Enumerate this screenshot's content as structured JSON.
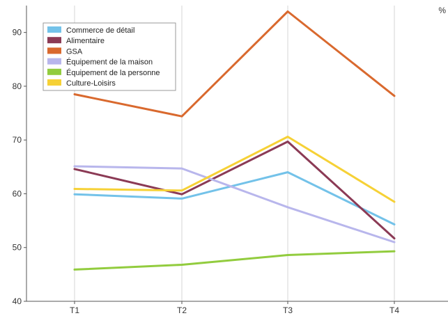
{
  "chart_data": {
    "type": "line",
    "title": "",
    "xlabel": "",
    "ylabel": "",
    "unit": "%",
    "categories": [
      "T1",
      "T2",
      "T3",
      "T4"
    ],
    "ylim": [
      40,
      95
    ],
    "yticks": [
      40,
      50,
      60,
      70,
      80,
      90
    ],
    "grid": {
      "vertical": true,
      "horizontal": false
    },
    "legend_position": "top-left",
    "series": [
      {
        "name": "Commerce de détail",
        "color": "#73c2e9",
        "values": [
          59.9,
          59.1,
          64.0,
          54.3
        ]
      },
      {
        "name": "Alimentaire",
        "color": "#8b3a55",
        "values": [
          64.6,
          59.9,
          69.7,
          51.7
        ]
      },
      {
        "name": "GSA",
        "color": "#d9692e",
        "values": [
          78.5,
          74.4,
          93.9,
          78.2
        ]
      },
      {
        "name": "Équipement de la maison",
        "color": "#b8b6ec",
        "values": [
          65.1,
          64.7,
          57.5,
          51.0
        ]
      },
      {
        "name": "Équipement de la personne",
        "color": "#92cc3e",
        "values": [
          45.9,
          46.8,
          48.6,
          49.3
        ]
      },
      {
        "name": "Culture-Loisirs",
        "color": "#f6d136",
        "values": [
          60.9,
          60.6,
          70.6,
          58.5
        ]
      }
    ]
  }
}
